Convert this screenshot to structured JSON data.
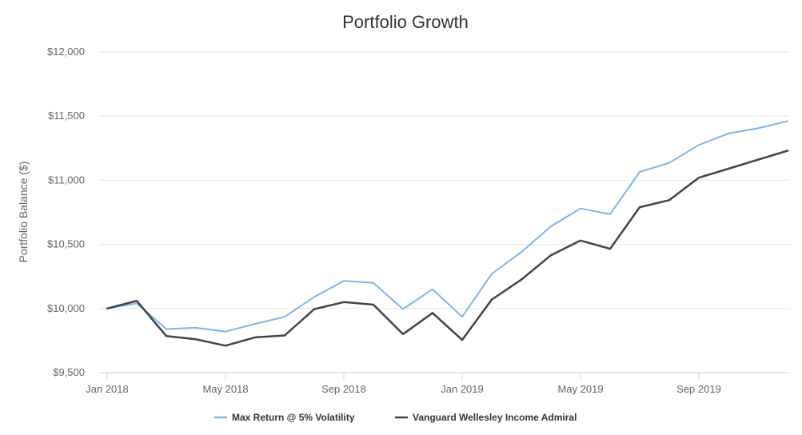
{
  "chart_data": {
    "type": "line",
    "title": "Portfolio Growth",
    "ylabel": "Portfolio Balance ($)",
    "xlabel": "",
    "ylim": [
      9500,
      12000
    ],
    "y_ticks": [
      {
        "value": 9500,
        "label": "$9,500"
      },
      {
        "value": 10000,
        "label": "$10,000"
      },
      {
        "value": 10500,
        "label": "$10,500"
      },
      {
        "value": 11000,
        "label": "$11,000"
      },
      {
        "value": 11500,
        "label": "$11,500"
      },
      {
        "value": 12000,
        "label": "$12,000"
      }
    ],
    "x_ticks": [
      {
        "index": 0,
        "label": "Jan 2018"
      },
      {
        "index": 4,
        "label": "May 2018"
      },
      {
        "index": 8,
        "label": "Sep 2018"
      },
      {
        "index": 12,
        "label": "Jan 2019"
      },
      {
        "index": 16,
        "label": "May 2019"
      },
      {
        "index": 20,
        "label": "Sep 2019"
      }
    ],
    "x": [
      "Jan 2018",
      "Feb 2018",
      "Mar 2018",
      "Apr 2018",
      "May 2018",
      "Jun 2018",
      "Jul 2018",
      "Aug 2018",
      "Sep 2018",
      "Oct 2018",
      "Nov 2018",
      "Dec 2018",
      "Jan 2019",
      "Feb 2019",
      "Mar 2019",
      "Apr 2019",
      "May 2019",
      "Jun 2019",
      "Jul 2019",
      "Aug 2019",
      "Sep 2019",
      "Oct 2019",
      "Nov 2019",
      "Dec 2019"
    ],
    "grid": true,
    "legend_position": "bottom-center",
    "series": [
      {
        "name": "Max Return @ 5% Volatility",
        "color": "#7cb5ec",
        "values": [
          10000,
          10040,
          9840,
          9850,
          9820,
          9880,
          9935,
          10090,
          10215,
          10200,
          9995,
          10150,
          9935,
          10270,
          10440,
          10640,
          10780,
          10735,
          11065,
          11135,
          11275,
          11365,
          11405,
          11460
        ]
      },
      {
        "name": "Vanguard Wellesley Income Admiral",
        "color": "#434348",
        "values": [
          10000,
          10060,
          9785,
          9760,
          9710,
          9775,
          9790,
          9995,
          10050,
          10030,
          9800,
          9965,
          9755,
          10070,
          10225,
          10415,
          10530,
          10465,
          10790,
          10845,
          11020,
          11090,
          11160,
          11230
        ]
      }
    ]
  }
}
